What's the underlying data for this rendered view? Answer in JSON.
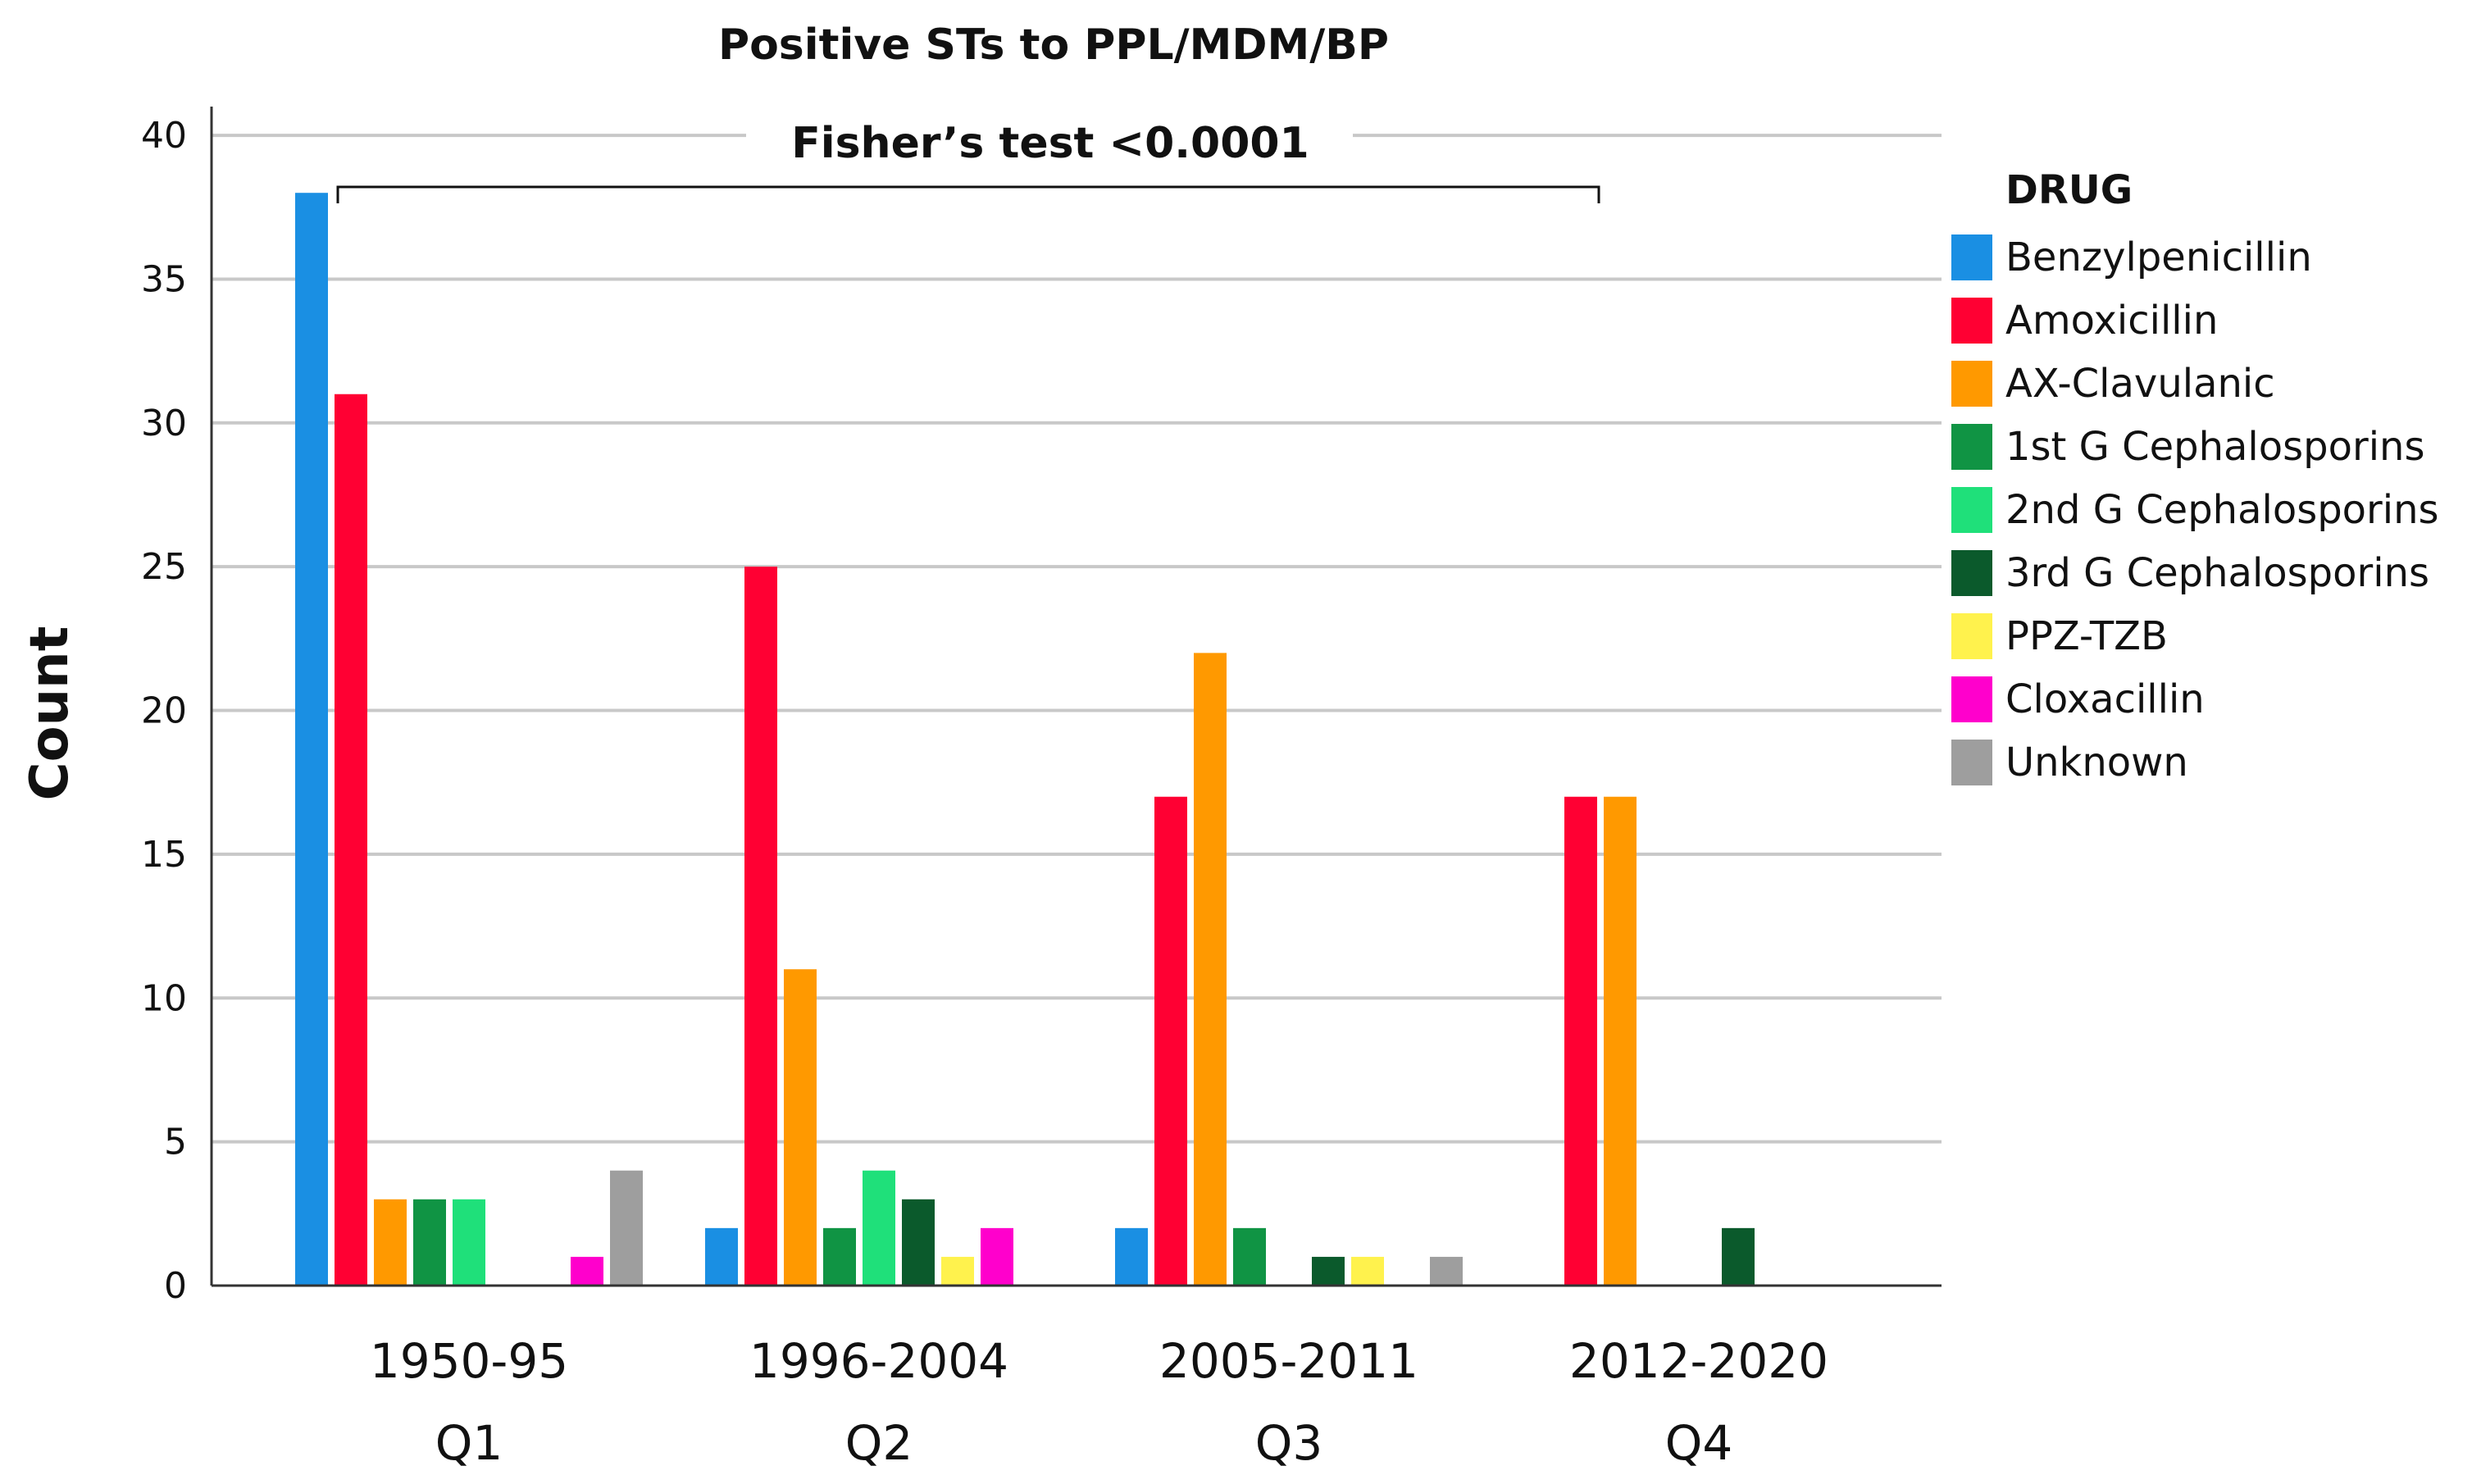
{
  "chart_data": {
    "type": "bar",
    "title": "Positive STs to PPL/MDM/BP",
    "annotation": "Fisher’s test <0.0001",
    "xlabel": "",
    "ylabel": "Count",
    "ylim": [
      0,
      41
    ],
    "yticks": [
      0,
      5,
      10,
      15,
      20,
      25,
      30,
      35,
      40
    ],
    "categories": [
      "1950-95",
      "1996-2004",
      "2005-2011",
      "2012-2020"
    ],
    "sublabels": [
      "Q1",
      "Q2",
      "Q3",
      "Q4"
    ],
    "legend_title": "DRUG",
    "legend_position": "right",
    "grid": true,
    "series": [
      {
        "name": "Benzylpenicillin",
        "color": "#1a8fe3",
        "values": [
          38,
          2,
          2,
          0
        ]
      },
      {
        "name": "Amoxicillin",
        "color": "#ff0033",
        "values": [
          31,
          25,
          17,
          17
        ]
      },
      {
        "name": "AX-Clavulanic",
        "color": "#ff9900",
        "values": [
          3,
          11,
          22,
          17
        ]
      },
      {
        "name": "1st G Cephalosporins",
        "color": "#109444",
        "values": [
          3,
          2,
          2,
          0
        ]
      },
      {
        "name": "2nd G Cephalosporins",
        "color": "#1fe07a",
        "values": [
          3,
          4,
          0,
          0
        ]
      },
      {
        "name": "3rd G Cephalosporins",
        "color": "#0b5a2c",
        "values": [
          0,
          3,
          1,
          2
        ]
      },
      {
        "name": "PPZ-TZB",
        "color": "#fff24d",
        "values": [
          0,
          1,
          1,
          0
        ]
      },
      {
        "name": "Cloxacillin",
        "color": "#ff00cc",
        "values": [
          1,
          2,
          0,
          0
        ]
      },
      {
        "name": "Unknown",
        "color": "#9e9e9e",
        "values": [
          4,
          0,
          1,
          0
        ]
      }
    ]
  }
}
